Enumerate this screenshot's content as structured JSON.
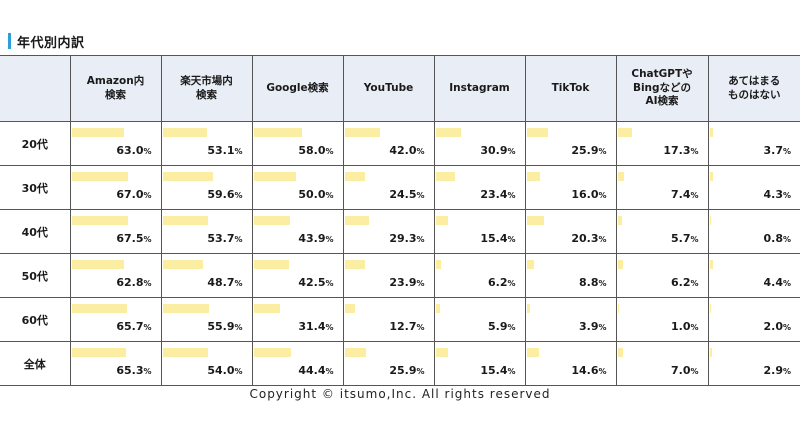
{
  "title": "年代別内訳",
  "copyright": "Copyright © itsumo,Inc. All rights reserved",
  "colors": {
    "bar": "#fbeea2",
    "header_bg": "#e9edf6",
    "title_accent": "#2a9fd8"
  },
  "chart_data": {
    "type": "table",
    "title": "年代別内訳",
    "columns": [
      "Amazon内\n検索",
      "楽天市場内\n検索",
      "Google検索",
      "YouTube",
      "Instagram",
      "TikTok",
      "ChatGPTや\nBingなどの\nAI検索",
      "あてはまる\nものはない"
    ],
    "rows": [
      {
        "label": "20代",
        "values": [
          63.0,
          53.1,
          58.0,
          42.0,
          30.9,
          25.9,
          17.3,
          3.7
        ]
      },
      {
        "label": "30代",
        "values": [
          67.0,
          59.6,
          50.0,
          24.5,
          23.4,
          16.0,
          7.4,
          4.3
        ]
      },
      {
        "label": "40代",
        "values": [
          67.5,
          53.7,
          43.9,
          29.3,
          15.4,
          20.3,
          5.7,
          0.8
        ]
      },
      {
        "label": "50代",
        "values": [
          62.8,
          48.7,
          42.5,
          23.9,
          6.2,
          8.8,
          6.2,
          4.4
        ]
      },
      {
        "label": "60代",
        "values": [
          65.7,
          55.9,
          31.4,
          12.7,
          5.9,
          3.9,
          1.0,
          2.0
        ]
      },
      {
        "label": "全体",
        "values": [
          65.3,
          54.0,
          44.4,
          25.9,
          15.4,
          14.6,
          7.0,
          2.9
        ]
      }
    ],
    "unit": "%",
    "bar_scale_max": 100
  }
}
